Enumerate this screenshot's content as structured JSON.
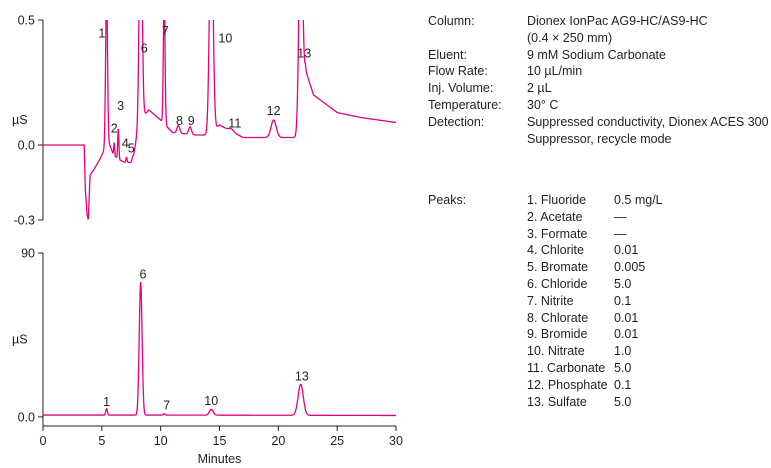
{
  "conditions": [
    {
      "label": "Column:",
      "value": "Dionex IonPac AG9-HC/AS9-HC"
    },
    {
      "label": "",
      "value": "(0.4 × 250 mm)"
    },
    {
      "label": "Eluent:",
      "value": "9 mM Sodium Carbonate"
    },
    {
      "label": "Flow Rate:",
      "value": "10 µL/min"
    },
    {
      "label": "Inj. Volume:",
      "value": "2 µL"
    },
    {
      "label": "Temperature:",
      "value": "30° C"
    },
    {
      "label": "Detection:",
      "value": "Suppressed conductivity, Dionex ACES 300"
    },
    {
      "label": "",
      "value": "Suppressor, recycle mode"
    }
  ],
  "peaks_header": "Peaks:",
  "peaks": [
    {
      "name": "1. Fluoride",
      "conc": "0.5  mg/L"
    },
    {
      "name": "2. Acetate",
      "conc": "—"
    },
    {
      "name": "3. Formate",
      "conc": "—"
    },
    {
      "name": "4. Chlorite",
      "conc": "0.01"
    },
    {
      "name": "5. Bromate",
      "conc": "0.005"
    },
    {
      "name": "6. Chloride",
      "conc": "5.0"
    },
    {
      "name": "7. Nitrite",
      "conc": "0.1"
    },
    {
      "name": "8. Chlorate",
      "conc": "0.01"
    },
    {
      "name": "9. Bromide",
      "conc": "0.01"
    },
    {
      "name": "10. Nitrate",
      "conc": "1.0"
    },
    {
      "name": "11. Carbonate",
      "conc": "5.0"
    },
    {
      "name": "12. Phosphate",
      "conc": "0.1"
    },
    {
      "name": "13. Sulfate",
      "conc": "5.0"
    }
  ],
  "chart_data": [
    {
      "type": "line",
      "name": "upper-chromatogram",
      "ylabel": "µS",
      "ylim": [
        -0.3,
        0.5
      ],
      "xlim": [
        0,
        30
      ],
      "y_ticks": [
        "0.5",
        "0.0",
        "-0.3"
      ],
      "y_tick_values": [
        0.5,
        0.0,
        -0.3
      ],
      "color": "#e6007e",
      "baseline": [
        [
          0,
          0.0
        ],
        [
          3.0,
          0.0
        ],
        [
          3.5,
          0.0
        ],
        [
          3.6,
          -0.18
        ],
        [
          3.75,
          -0.28
        ],
        [
          3.85,
          -0.3
        ],
        [
          4.0,
          -0.12
        ],
        [
          4.3,
          -0.1
        ],
        [
          4.8,
          -0.06
        ],
        [
          5.2,
          -0.02
        ],
        [
          5.5,
          0.02
        ],
        [
          6.0,
          -0.04
        ],
        [
          6.5,
          -0.06
        ],
        [
          7.0,
          -0.07
        ],
        [
          7.6,
          -0.07
        ],
        [
          8.2,
          0.1
        ],
        [
          9.0,
          0.14
        ],
        [
          10.0,
          0.1
        ],
        [
          11.0,
          0.05
        ],
        [
          13.0,
          0.04
        ],
        [
          14.0,
          0.04
        ],
        [
          15.0,
          0.08
        ],
        [
          17.0,
          0.03
        ],
        [
          19.0,
          0.03
        ],
        [
          20.5,
          0.03
        ],
        [
          21.3,
          0.03
        ],
        [
          21.8,
          0.03
        ],
        [
          22.3,
          0.3
        ],
        [
          23.0,
          0.2
        ],
        [
          25.0,
          0.13
        ],
        [
          27.0,
          0.11
        ],
        [
          30.0,
          0.09
        ]
      ],
      "peak_shapes": [
        {
          "x": 5.4,
          "height": 0.6,
          "width": 0.08
        },
        {
          "x": 6.05,
          "height": 0.05,
          "width": 0.04
        },
        {
          "x": 6.4,
          "height": 0.12,
          "width": 0.05
        },
        {
          "x": 7.1,
          "height": 0.02,
          "width": 0.05
        },
        {
          "x": 7.6,
          "height": 0.02,
          "width": 0.05
        },
        {
          "x": 8.3,
          "height": 0.9,
          "width": 0.12
        },
        {
          "x": 10.3,
          "height": 0.52,
          "width": 0.07
        },
        {
          "x": 11.5,
          "height": 0.03,
          "width": 0.12
        },
        {
          "x": 12.5,
          "height": 0.03,
          "width": 0.12
        },
        {
          "x": 14.3,
          "height": 0.9,
          "width": 0.15
        },
        {
          "x": 16.0,
          "height": 0.01,
          "width": 0.2
        },
        {
          "x": 19.6,
          "height": 0.07,
          "width": 0.22
        },
        {
          "x": 21.9,
          "height": 0.9,
          "width": 0.15
        }
      ],
      "peak_labels": [
        {
          "label": "1",
          "x": 5.0,
          "y": 0.43
        },
        {
          "label": "2",
          "x": 6.05,
          "y": 0.05
        },
        {
          "label": "3",
          "x": 6.6,
          "y": 0.14
        },
        {
          "label": "4",
          "x": 7.0,
          "y": -0.01
        },
        {
          "label": "5",
          "x": 7.5,
          "y": -0.03
        },
        {
          "label": "6",
          "x": 8.6,
          "y": 0.37
        },
        {
          "label": "7",
          "x": 10.4,
          "y": 0.44
        },
        {
          "label": "8",
          "x": 11.6,
          "y": 0.08
        },
        {
          "label": "9",
          "x": 12.6,
          "y": 0.08
        },
        {
          "label": "10",
          "x": 15.5,
          "y": 0.41
        },
        {
          "label": "11",
          "x": 16.3,
          "y": 0.07
        },
        {
          "label": "12",
          "x": 19.6,
          "y": 0.12
        },
        {
          "label": "13",
          "x": 22.2,
          "y": 0.35
        }
      ]
    },
    {
      "type": "line",
      "name": "lower-chromatogram",
      "ylabel": "µS",
      "xlabel": "Minutes",
      "ylim": [
        -5,
        90
      ],
      "xlim": [
        0,
        30
      ],
      "y_ticks": [
        "90",
        "0.0"
      ],
      "y_tick_values": [
        90,
        0
      ],
      "x_ticks": [
        "0",
        "5",
        "10",
        "15",
        "20",
        "25",
        "30"
      ],
      "x_tick_values": [
        0,
        5,
        10,
        15,
        20,
        25,
        30
      ],
      "color": "#e6007e",
      "baseline": [
        [
          0,
          1.0
        ],
        [
          10.0,
          1.0
        ],
        [
          30.0,
          0.8
        ]
      ],
      "peak_shapes": [
        {
          "x": 5.4,
          "height": 3.5,
          "width": 0.07
        },
        {
          "x": 8.3,
          "height": 73,
          "width": 0.12
        },
        {
          "x": 10.3,
          "height": 0.8,
          "width": 0.08
        },
        {
          "x": 14.3,
          "height": 3.2,
          "width": 0.16
        },
        {
          "x": 21.9,
          "height": 17,
          "width": 0.22
        }
      ],
      "peak_labels": [
        {
          "label": "1",
          "x": 5.4,
          "y": 6
        },
        {
          "label": "6",
          "x": 8.5,
          "y": 76
        },
        {
          "label": "7",
          "x": 10.5,
          "y": 4
        },
        {
          "label": "10",
          "x": 14.3,
          "y": 6.5
        },
        {
          "label": "13",
          "x": 22.0,
          "y": 20
        }
      ]
    }
  ]
}
